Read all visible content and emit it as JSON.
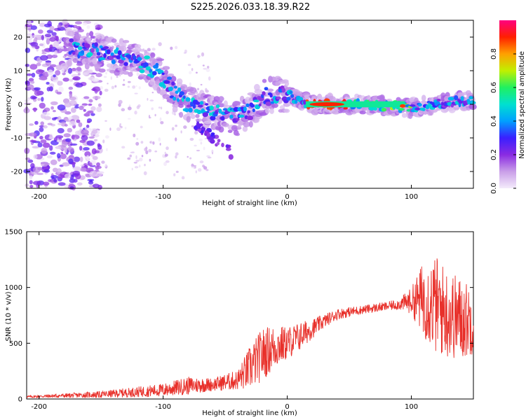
{
  "title": "S225.2026.033.18.39.R22",
  "chart_data": [
    {
      "type": "heatmap",
      "name": "spectrogram",
      "xlabel": "Height of straight line (km)",
      "ylabel": "Frequency (Hz)",
      "xlim": [
        -210,
        150
      ],
      "ylim": [
        -25,
        25
      ],
      "xticks": [
        -200,
        -100,
        0,
        100
      ],
      "yticks": [
        -20,
        -10,
        0,
        10,
        20
      ],
      "ridge": {
        "description": "dominant frequency track vs height",
        "x": [
          -170,
          -150,
          -130,
          -115,
          -100,
          -90,
          -80,
          -70,
          -60,
          -50,
          -40,
          -30,
          -20,
          -10,
          0,
          10,
          20,
          40,
          60,
          80,
          100,
          120,
          140,
          150
        ],
        "y": [
          17,
          15,
          14,
          12,
          8,
          3,
          0,
          -1,
          -2,
          -3,
          -4,
          -2,
          2,
          3,
          3,
          1,
          0,
          0,
          0,
          -0.5,
          -1,
          0,
          1,
          1
        ]
      },
      "colorbar": {
        "label": "Normalized spectral amplitude",
        "range": [
          0,
          1
        ],
        "ticks": [
          0.0,
          0.2,
          0.4,
          0.6,
          0.8
        ],
        "colormap": [
          "#f4ecfb",
          "#c99ee8",
          "#8a2be2",
          "#3a1fff",
          "#00a0ff",
          "#00e0d0",
          "#20f060",
          "#c0f000",
          "#ffa000",
          "#ff2000",
          "#ff0080"
        ]
      }
    },
    {
      "type": "line",
      "name": "snr",
      "xlabel": "Height of straight line (km)",
      "ylabel": "SNR (10 * v/v)",
      "xlim": [
        -210,
        150
      ],
      "ylim": [
        0,
        1500
      ],
      "xticks": [
        -200,
        -100,
        0,
        100
      ],
      "yticks": [
        0,
        500,
        1000,
        1500
      ],
      "color": "#e8302a",
      "envelope": {
        "x": [
          -210,
          -150,
          -100,
          -80,
          -60,
          -40,
          -30,
          -20,
          -10,
          0,
          10,
          20,
          30,
          40,
          60,
          80,
          90,
          100,
          110,
          120,
          130,
          140,
          150
        ],
        "mean": [
          20,
          40,
          80,
          120,
          130,
          170,
          280,
          400,
          470,
          500,
          560,
          630,
          700,
          760,
          800,
          830,
          850,
          880,
          900,
          840,
          760,
          720,
          700
        ],
        "amplitude": [
          10,
          30,
          60,
          80,
          60,
          90,
          200,
          240,
          200,
          150,
          130,
          90,
          60,
          50,
          40,
          40,
          50,
          120,
          350,
          450,
          400,
          380,
          300
        ]
      }
    }
  ]
}
